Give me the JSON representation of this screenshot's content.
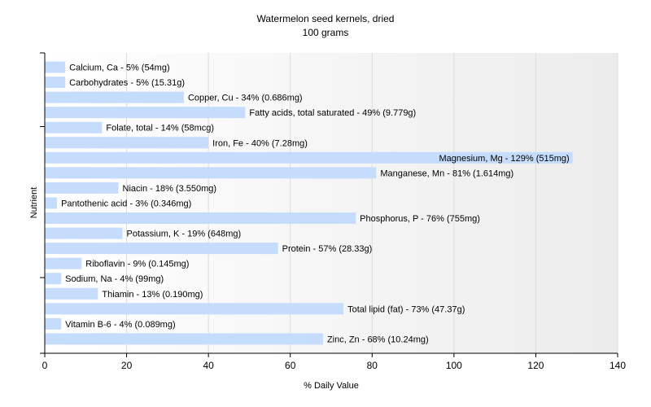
{
  "chart_data": {
    "type": "bar",
    "orientation": "horizontal",
    "title": "Watermelon seed kernels, dried",
    "subtitle": "100 grams",
    "xlabel": "% Daily Value",
    "ylabel": "Nutrient",
    "xlim": [
      0,
      140
    ],
    "xticks": [
      0,
      20,
      40,
      60,
      80,
      100,
      120,
      140
    ],
    "grid": true,
    "bar_color": "#c6dcfc",
    "categories": [
      "Calcium, Ca",
      "Carbohydrates",
      "Copper, Cu",
      "Fatty acids, total saturated",
      "Folate, total",
      "Iron, Fe",
      "Magnesium, Mg",
      "Manganese, Mn",
      "Niacin",
      "Pantothenic acid",
      "Phosphorus, P",
      "Potassium, K",
      "Protein",
      "Riboflavin",
      "Sodium, Na",
      "Thiamin",
      "Total lipid (fat)",
      "Vitamin B-6",
      "Zinc, Zn"
    ],
    "values": [
      5,
      5,
      34,
      49,
      14,
      40,
      129,
      81,
      18,
      3,
      76,
      19,
      57,
      9,
      4,
      13,
      73,
      4,
      68
    ],
    "labels": [
      "Calcium, Ca - 5% (54mg)",
      "Carbohydrates - 5% (15.31g)",
      "Copper, Cu - 34% (0.686mg)",
      "Fatty acids, total saturated - 49% (9.779g)",
      "Folate, total - 14% (58mcg)",
      "Iron, Fe - 40% (7.28mg)",
      "Magnesium, Mg - 129% (515mg)",
      "Manganese, Mn - 81% (1.614mg)",
      "Niacin - 18% (3.550mg)",
      "Pantothenic acid - 3% (0.346mg)",
      "Phosphorus, P - 76% (755mg)",
      "Potassium, K - 19% (648mg)",
      "Protein - 57% (28.33g)",
      "Riboflavin - 9% (0.145mg)",
      "Sodium, Na - 4% (99mg)",
      "Thiamin - 13% (0.190mg)",
      "Total lipid (fat) - 73% (47.37g)",
      "Vitamin B-6 - 4% (0.089mg)",
      "Zinc, Zn - 68% (10.24mg)"
    ]
  }
}
